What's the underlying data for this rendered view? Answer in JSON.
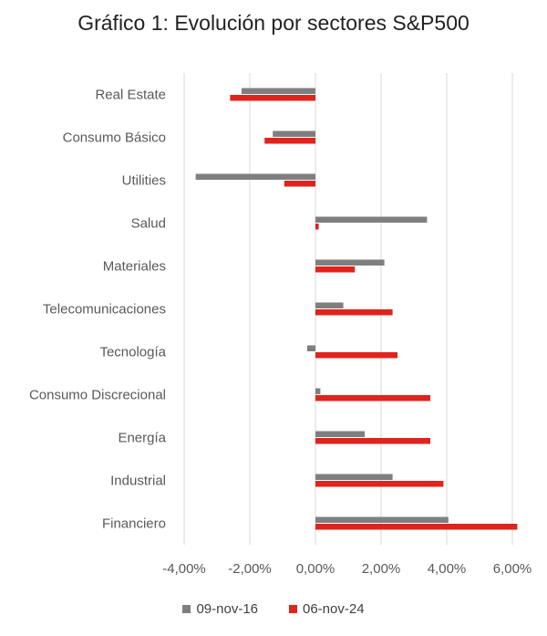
{
  "chart_data": {
    "type": "bar",
    "orientation": "horizontal",
    "title": "Gráfico 1: Evolución por sectores S&P500",
    "xlabel": "",
    "ylabel": "",
    "categories": [
      "Real Estate",
      "Consumo Básico",
      "Utilities",
      "Salud",
      "Materiales",
      "Telecomunicaciones",
      "Tecnología",
      "Consumo Discrecional",
      "Energía",
      "Industrial",
      "Financiero"
    ],
    "series": [
      {
        "name": "09-nov-16",
        "color": "#7f7f7f",
        "values": [
          -2.25,
          -1.3,
          -3.65,
          3.4,
          2.1,
          0.85,
          -0.25,
          0.15,
          1.5,
          2.35,
          4.05
        ]
      },
      {
        "name": "06-nov-24",
        "color": "#e0231c",
        "values": [
          -2.6,
          -1.55,
          -0.95,
          0.1,
          1.2,
          2.35,
          2.5,
          3.5,
          3.5,
          3.9,
          6.15
        ]
      }
    ],
    "xlim": [
      -4,
      6
    ],
    "xticks": [
      "-4,00%",
      "-2,00%",
      "0,00%",
      "2,00%",
      "4,00%",
      "6,00%"
    ],
    "grid": "vertical",
    "legend": "bottom"
  }
}
